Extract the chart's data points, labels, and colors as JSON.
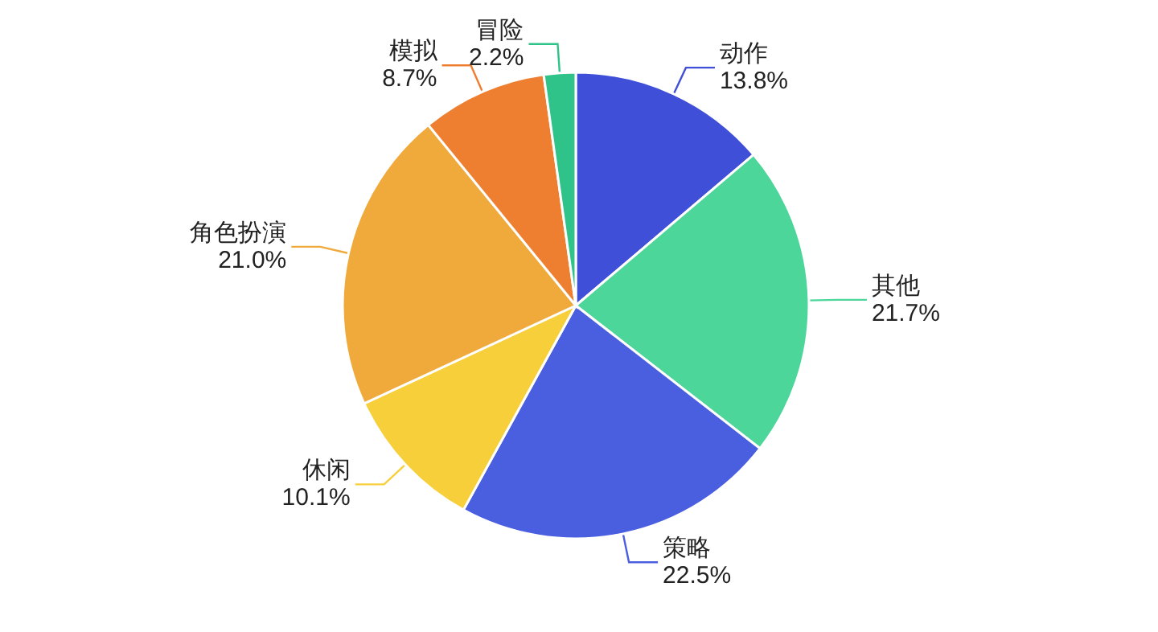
{
  "chart_data": {
    "type": "pie",
    "categories": [
      "动作",
      "其他",
      "策略",
      "休闲",
      "角色扮演",
      "模拟",
      "冒险"
    ],
    "values": [
      13.8,
      21.7,
      22.5,
      10.1,
      21.0,
      8.7,
      2.2
    ],
    "value_labels": [
      "13.8%",
      "21.7%",
      "22.5%",
      "10.1%",
      "21.0%",
      "8.7%",
      "2.2%"
    ],
    "colors": [
      "#3f4fd8",
      "#4cd69a",
      "#4a5ee0",
      "#f7cf3a",
      "#f0aa3c",
      "#ee7f30",
      "#2fc389"
    ]
  }
}
